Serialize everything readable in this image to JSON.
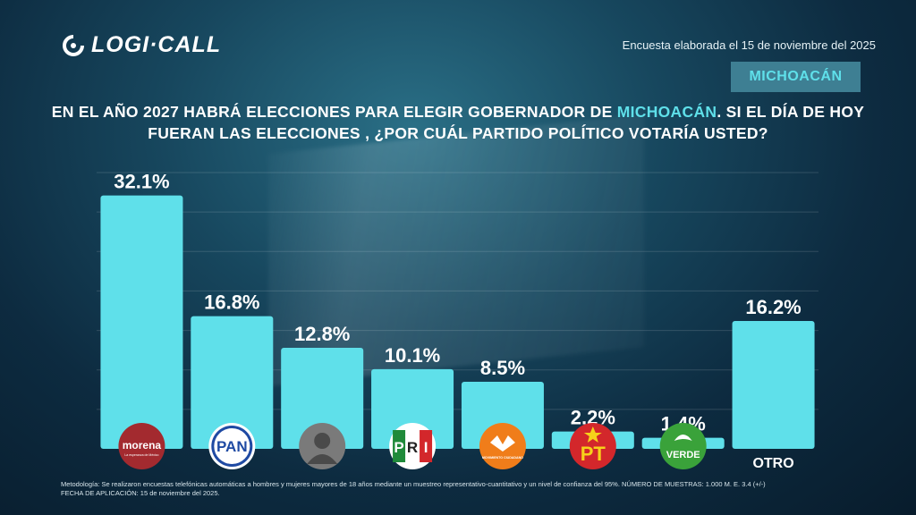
{
  "header": {
    "logo_text": "LOGI·CALL",
    "survey_date": "Encuesta elaborada el 15 de noviembre del 2025",
    "state_badge": "MICHOACÁN"
  },
  "question": {
    "part1": "EN EL AÑO 2027 HABRÁ ELECCIONES PARA ELEGIR GOBERNADOR DE ",
    "highlight": "MICHOACÁN",
    "part2": ".  SI EL DÍA DE HOY FUERAN LAS ELECCIONES , ¿POR CUÁL PARTIDO POLÍTICO VOTARÍA USTED?"
  },
  "chart_data": {
    "type": "bar",
    "categories": [
      "morena",
      "PAN",
      "",
      "PRI",
      "MOVIMIENTO CIUDADANO",
      "PT",
      "VERDE",
      "OTRO"
    ],
    "values": [
      32.1,
      16.8,
      12.8,
      10.1,
      8.5,
      2.2,
      1.4,
      16.2
    ],
    "value_labels": [
      "32.1%",
      "16.8%",
      "12.8%",
      "10.1%",
      "8.5%",
      "2.2%",
      "1.4%",
      "16.2%"
    ],
    "icons": [
      "morena-logo",
      "pan-logo",
      "unknown-person-avatar",
      "pri-logo",
      "movimiento-ciudadano-logo",
      "pt-logo",
      "verde-logo",
      "none"
    ],
    "logo_texts": {
      "morena": "morena",
      "morena_sub": "La esperanza de México",
      "pan": "PAN",
      "pri_p": "P",
      "pri_r": "R",
      "pri_i": "I",
      "mc": "MOVIMIENTO CIUDADANO",
      "pt": "PT",
      "verde": "VERDE"
    },
    "other_label": "OTRO",
    "ylim": [
      0,
      35
    ],
    "grid": true,
    "bar_color": "#5fe0ea"
  },
  "footer": {
    "methodology_line1": "Metodología: Se realizaron encuestas telefónicas automáticas a hombres y mujeres mayores de 18 años mediante un muestreo representativo-cuantitativo y un nivel de confianza del 95%. NÚMERO DE MUESTRAS: 1.000 M. E. 3.4 (+/-)",
    "methodology_line2": "FECHA DE APLICACIÓN: 15 de noviembre del 2025."
  }
}
